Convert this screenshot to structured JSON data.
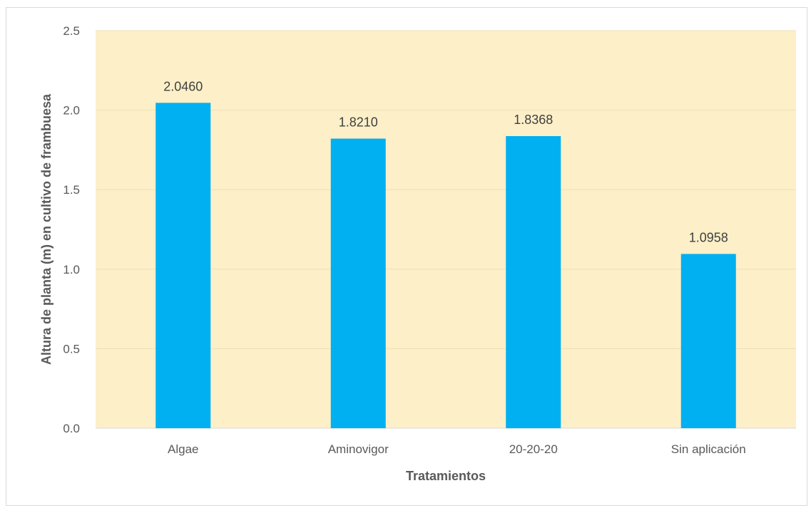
{
  "chart_data": {
    "type": "bar",
    "categories": [
      "Algae",
      "Aminovigor",
      "20-20-20",
      "Sin aplicación"
    ],
    "values": [
      2.046,
      1.821,
      1.8368,
      1.0958
    ],
    "data_labels": [
      "2.0460",
      "1.8210",
      "1.8368",
      "1.0958"
    ],
    "title": "",
    "xlabel": "Tratamientos",
    "ylabel": "Altura de planta (m) en cultivo de frambuesa",
    "ylim": [
      0,
      2.5
    ],
    "yticks": [
      "0.0",
      "0.5",
      "1.0",
      "1.5",
      "2.0",
      "2.5"
    ],
    "grid": true,
    "legend": "none",
    "colors": {
      "bar": "#00b0f0",
      "plot_background": "#fdefc8",
      "gridline": "#eedfb4",
      "axis_line": "#d9d9d9"
    }
  }
}
